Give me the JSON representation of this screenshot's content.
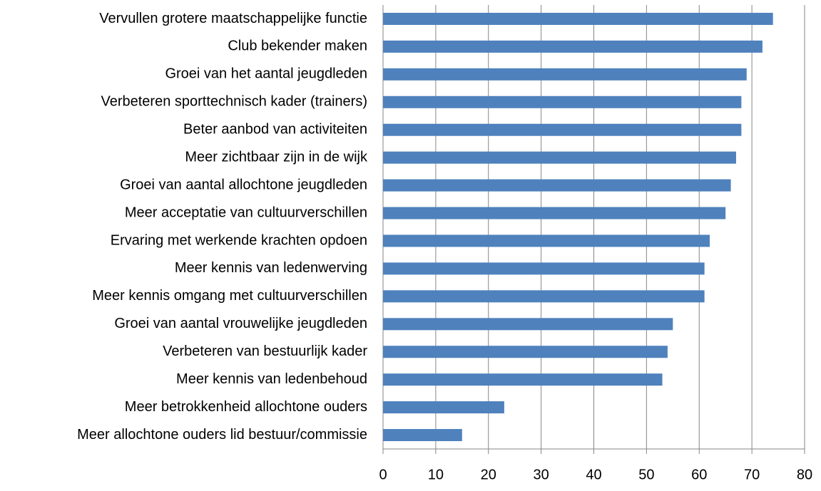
{
  "chart_data": {
    "type": "barh",
    "categories": [
      "Vervullen grotere maatschappelijke  functie",
      "Club bekender maken",
      "Groei van het aantal  jeugdleden",
      "Verbeteren sporttechnisch kader (trainers)",
      "Beter aanbod van activiteiten",
      "Meer zichtbaar zijn in de wijk",
      "Groei van aantal  allochtone jeugdleden",
      "Meer acceptatie van cultuurverschillen",
      "Ervaring met werkende krachten opdoen",
      "Meer kennis van ledenwerving",
      "Meer kennis omgang  met cultuurverschillen",
      "Groei van aantal  vrouwelijke jeugdleden",
      "Verbeteren van bestuurlijk kader",
      "Meer kennis van ledenbehoud",
      "Meer betrokkenheid allochtone ouders",
      "Meer allochtone ouders lid bestuur/commissie"
    ],
    "values": [
      74,
      72,
      69,
      68,
      68,
      67,
      66,
      65,
      62,
      61,
      61,
      55,
      54,
      53,
      23,
      15
    ],
    "color": "#4f81bd",
    "xlim": [
      0,
      80
    ],
    "xticks": [
      0,
      10,
      20,
      30,
      40,
      50,
      60,
      70,
      80
    ],
    "grid": true
  }
}
